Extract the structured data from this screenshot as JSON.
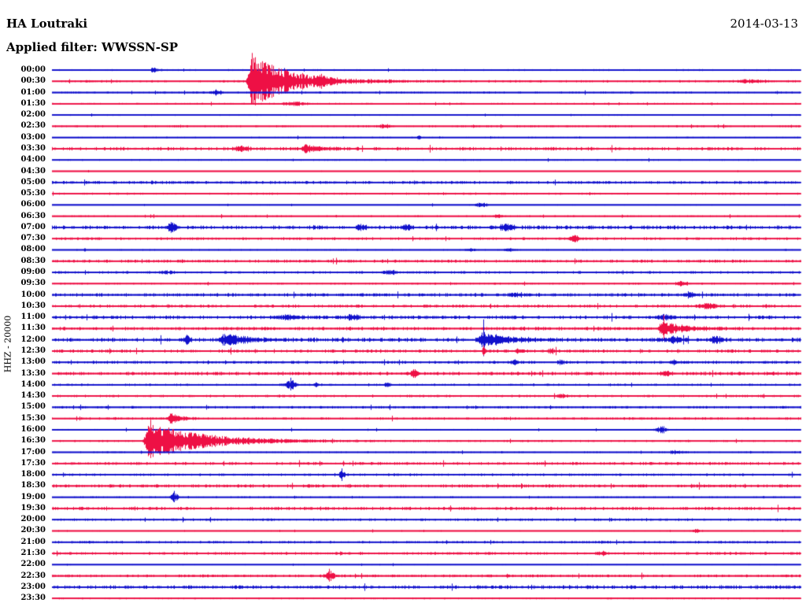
{
  "colors": {
    "blue": "#1111CC",
    "red": "#EE1045",
    "background": "#FFFFFF",
    "text": "#000000"
  },
  "chart_data": {
    "type": "line",
    "subtype": "helicorder",
    "station": "HA Loutraki",
    "date": "2014-03-13",
    "filter_label": "Applied filter: WWSSN-SP",
    "scale_label": "HHZ - 20000",
    "minutes_per_row": 30,
    "legend": "none",
    "grid": "off",
    "rows": [
      {
        "time": "00:00",
        "color": "blue",
        "noise": 0.8,
        "events": [
          {
            "m": 4.1,
            "amp": 3.5,
            "w": 7
          }
        ]
      },
      {
        "time": "00:30",
        "color": "red",
        "noise": 1.0,
        "events": [
          {
            "m": 8.0,
            "amp": 34,
            "w": 6,
            "decay": 50,
            "spike": 36
          },
          {
            "m": 10.8,
            "amp": 4,
            "w": 8
          },
          {
            "m": 28.0,
            "amp": 2.5,
            "w": 22
          }
        ]
      },
      {
        "time": "01:00",
        "color": "blue",
        "noise": 0.9,
        "events": [
          {
            "m": 6.6,
            "amp": 3.5,
            "w": 8
          }
        ]
      },
      {
        "time": "01:30",
        "color": "red",
        "noise": 0.8,
        "events": [
          {
            "m": 9.7,
            "amp": 2.5,
            "w": 16
          }
        ]
      },
      {
        "time": "02:00",
        "color": "blue",
        "noise": 0.7,
        "events": []
      },
      {
        "time": "02:30",
        "color": "red",
        "noise": 0.9,
        "events": [
          {
            "m": 13.3,
            "amp": 2,
            "w": 12
          }
        ]
      },
      {
        "time": "03:00",
        "color": "blue",
        "noise": 0.7,
        "events": [
          {
            "m": 14.7,
            "amp": 3,
            "w": 3
          }
        ]
      },
      {
        "time": "03:30",
        "color": "red",
        "noise": 1.5,
        "events": [
          {
            "m": 7.6,
            "amp": 2.5,
            "w": 12
          },
          {
            "m": 10.2,
            "amp": 5,
            "w": 8,
            "decay": 20
          }
        ]
      },
      {
        "time": "04:00",
        "color": "blue",
        "noise": 0.7,
        "events": []
      },
      {
        "time": "04:30",
        "color": "red",
        "noise": 0.5,
        "events": []
      },
      {
        "time": "05:00",
        "color": "blue",
        "noise": 1.3,
        "events": []
      },
      {
        "time": "05:30",
        "color": "red",
        "noise": 0.9,
        "events": []
      },
      {
        "time": "06:00",
        "color": "blue",
        "noise": 0.6,
        "events": [
          {
            "m": 17.2,
            "amp": 2.5,
            "w": 12
          }
        ]
      },
      {
        "time": "06:30",
        "color": "red",
        "noise": 0.8,
        "events": [
          {
            "m": 17.9,
            "amp": 2,
            "w": 8
          }
        ]
      },
      {
        "time": "07:00",
        "color": "blue",
        "noise": 1.7,
        "events": [
          {
            "m": 4.8,
            "amp": 6,
            "w": 7
          },
          {
            "m": 12.4,
            "amp": 3,
            "w": 9
          },
          {
            "m": 14.2,
            "amp": 3,
            "w": 8
          },
          {
            "m": 18.2,
            "amp": 4,
            "w": 12
          }
        ]
      },
      {
        "time": "07:30",
        "color": "red",
        "noise": 1.2,
        "events": [
          {
            "m": 20.9,
            "amp": 4.5,
            "w": 8
          }
        ]
      },
      {
        "time": "08:00",
        "color": "blue",
        "noise": 0.7,
        "events": [
          {
            "m": 16.8,
            "amp": 2,
            "w": 8
          },
          {
            "m": 18.3,
            "amp": 2,
            "w": 8
          }
        ]
      },
      {
        "time": "08:30",
        "color": "red",
        "noise": 1.3,
        "events": []
      },
      {
        "time": "09:00",
        "color": "blue",
        "noise": 1.1,
        "events": [
          {
            "m": 4.6,
            "amp": 2,
            "w": 10
          },
          {
            "m": 13.5,
            "amp": 2,
            "w": 14
          }
        ]
      },
      {
        "time": "09:30",
        "color": "red",
        "noise": 0.9,
        "events": [
          {
            "m": 25.2,
            "amp": 3,
            "w": 10
          }
        ]
      },
      {
        "time": "10:00",
        "color": "blue",
        "noise": 1.5,
        "events": [
          {
            "m": 18.6,
            "amp": 2.5,
            "w": 9
          },
          {
            "m": 25.5,
            "amp": 2.5,
            "w": 10
          }
        ]
      },
      {
        "time": "10:30",
        "color": "red",
        "noise": 1.3,
        "events": [
          {
            "m": 26.3,
            "amp": 3,
            "w": 14
          }
        ]
      },
      {
        "time": "11:00",
        "color": "blue",
        "noise": 1.6,
        "events": [
          {
            "m": 9.5,
            "amp": 2.5,
            "w": 20
          },
          {
            "m": 12.0,
            "amp": 2.5,
            "w": 12
          },
          {
            "m": 24.6,
            "amp": 3.5,
            "w": 13
          }
        ]
      },
      {
        "time": "11:30",
        "color": "red",
        "noise": 1.5,
        "events": [
          {
            "m": 24.5,
            "amp": 9,
            "w": 8,
            "decay": 25,
            "spike": 17
          }
        ]
      },
      {
        "time": "12:00",
        "color": "blue",
        "noise": 1.8,
        "events": [
          {
            "m": 5.4,
            "amp": 5,
            "w": 5
          },
          {
            "m": 7.0,
            "amp": 9,
            "w": 10,
            "decay": 22
          },
          {
            "m": 17.3,
            "amp": 10,
            "w": 8,
            "decay": 28,
            "spike": 26
          },
          {
            "m": 24.9,
            "amp": 3.5,
            "w": 12
          },
          {
            "m": 26.6,
            "amp": 4,
            "w": 10
          }
        ]
      },
      {
        "time": "12:30",
        "color": "red",
        "noise": 1.4,
        "events": [
          {
            "m": 17.3,
            "amp": 5,
            "w": 3,
            "spike": 7
          },
          {
            "m": 18.7,
            "amp": 2.5,
            "w": 7
          },
          {
            "m": 20.0,
            "amp": 2.5,
            "w": 7
          }
        ]
      },
      {
        "time": "13:00",
        "color": "blue",
        "noise": 1.3,
        "events": [
          {
            "m": 18.5,
            "amp": 3,
            "w": 6
          },
          {
            "m": 20.4,
            "amp": 3,
            "w": 5
          },
          {
            "m": 24.9,
            "amp": 2.5,
            "w": 7
          }
        ]
      },
      {
        "time": "13:30",
        "color": "red",
        "noise": 1.5,
        "events": [
          {
            "m": 14.5,
            "amp": 4,
            "w": 7
          },
          {
            "m": 24.6,
            "amp": 2.5,
            "w": 9
          }
        ]
      },
      {
        "time": "14:00",
        "color": "blue",
        "noise": 1.0,
        "events": [
          {
            "m": 9.55,
            "amp": 6,
            "w": 8,
            "spike": 9
          },
          {
            "m": 10.6,
            "amp": 3,
            "w": 3
          },
          {
            "m": 13.4,
            "amp": 3,
            "w": 5
          }
        ]
      },
      {
        "time": "14:30",
        "color": "red",
        "noise": 1.1,
        "events": [
          {
            "m": 20.4,
            "amp": 2,
            "w": 8
          }
        ]
      },
      {
        "time": "15:00",
        "color": "blue",
        "noise": 1.1,
        "events": []
      },
      {
        "time": "15:30",
        "color": "red",
        "noise": 1.1,
        "events": [
          {
            "m": 4.77,
            "amp": 7,
            "w": 6,
            "decay": 12
          }
        ]
      },
      {
        "time": "16:00",
        "color": "blue",
        "noise": 0.7,
        "events": [
          {
            "m": 24.4,
            "amp": 5,
            "w": 8
          }
        ]
      },
      {
        "time": "16:30",
        "color": "red",
        "noise": 0.9,
        "events": [
          {
            "m": 3.95,
            "amp": 24,
            "w": 9,
            "decay": 65,
            "spike": 27
          }
        ]
      },
      {
        "time": "17:00",
        "color": "blue",
        "noise": 0.8,
        "events": [
          {
            "m": 25.0,
            "amp": 2,
            "w": 12
          }
        ]
      },
      {
        "time": "17:30",
        "color": "red",
        "noise": 1.3,
        "events": []
      },
      {
        "time": "18:00",
        "color": "blue",
        "noise": 1.1,
        "events": [
          {
            "m": 11.6,
            "amp": 7,
            "w": 4,
            "spike": 8
          }
        ]
      },
      {
        "time": "18:30",
        "color": "red",
        "noise": 1.4,
        "events": []
      },
      {
        "time": "19:00",
        "color": "blue",
        "noise": 0.8,
        "events": [
          {
            "m": 4.9,
            "amp": 6,
            "w": 6,
            "spike": 8
          }
        ]
      },
      {
        "time": "19:30",
        "color": "red",
        "noise": 1.4,
        "events": []
      },
      {
        "time": "20:00",
        "color": "blue",
        "noise": 1.1,
        "events": []
      },
      {
        "time": "20:30",
        "color": "red",
        "noise": 0.6,
        "events": [
          {
            "m": 25.8,
            "amp": 2,
            "w": 9
          }
        ]
      },
      {
        "time": "21:00",
        "color": "blue",
        "noise": 1.1,
        "events": []
      },
      {
        "time": "21:30",
        "color": "red",
        "noise": 1.2,
        "events": [
          {
            "m": 22.0,
            "amp": 2,
            "w": 9
          }
        ]
      },
      {
        "time": "22:00",
        "color": "blue",
        "noise": 0.6,
        "events": []
      },
      {
        "time": "22:30",
        "color": "red",
        "noise": 1.2,
        "events": [
          {
            "m": 11.1,
            "amp": 7,
            "w": 7,
            "spike": 9
          }
        ]
      },
      {
        "time": "23:00",
        "color": "blue",
        "noise": 1.6,
        "events": []
      },
      {
        "time": "23:30",
        "color": "red",
        "noise": 0.8,
        "events": []
      }
    ]
  }
}
